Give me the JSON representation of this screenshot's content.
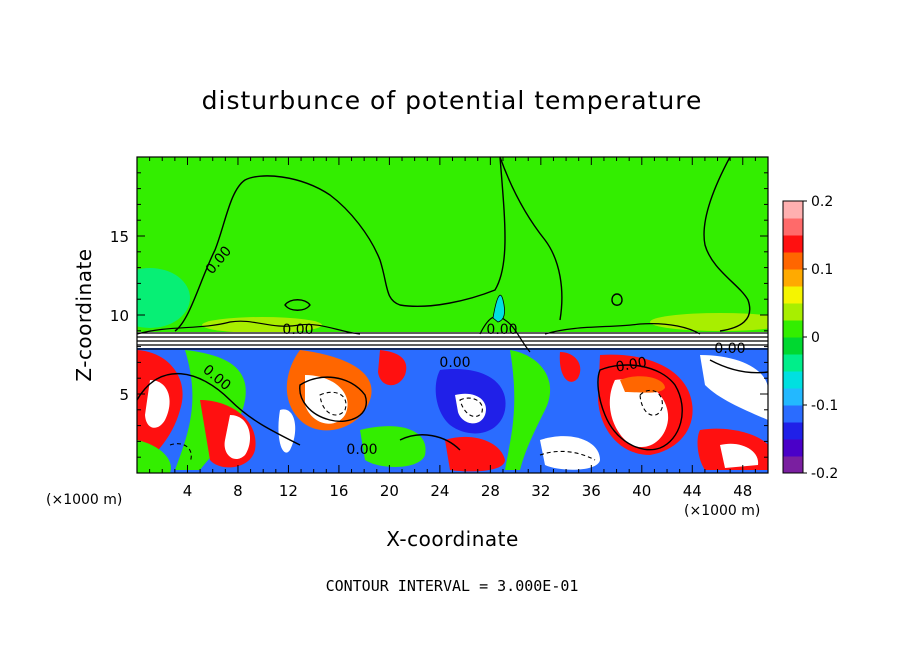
{
  "chart_data": {
    "type": "heatmap",
    "title": "disturbunce of potential temperature",
    "xlabel": "X-coordinate",
    "ylabel": "Z-coordinate",
    "x_unit_left": "(×1000 m)",
    "x_unit_right": "(×1000 m)",
    "footer": "CONTOUR INTERVAL = 3.000E-01",
    "xlim": [
      0,
      50
    ],
    "ylim": [
      0,
      20
    ],
    "x_ticks": [
      "4",
      "8",
      "12",
      "16",
      "20",
      "24",
      "28",
      "32",
      "36",
      "40",
      "44",
      "48"
    ],
    "y_ticks": [
      "5",
      "10",
      "15"
    ],
    "colorbar": {
      "range": [
        -0.2,
        0.2
      ],
      "tick_labels": [
        "0.2",
        "0.1",
        "0",
        "-0.1",
        "-0.2"
      ],
      "colors": [
        "#7a1fa0",
        "#4a00c8",
        "#2020e8",
        "#2a6cff",
        "#23b8ff",
        "#00e0e0",
        "#00ee8a",
        "#00d830",
        "#33ee00",
        "#a8ee00",
        "#f5f500",
        "#ffaa00",
        "#ff6600",
        "#ff1010",
        "#ff6a6a",
        "#ffb0b0"
      ]
    },
    "contour_labels": [
      "0.00",
      "0.00",
      "0.00",
      "0.00",
      "0.00",
      "0.00",
      "0.00",
      "0.00"
    ],
    "field_description": "upper layer near zero (green) with a thin band at z≈8–9; turbulent strongly mixed lower layer below z≈8"
  }
}
